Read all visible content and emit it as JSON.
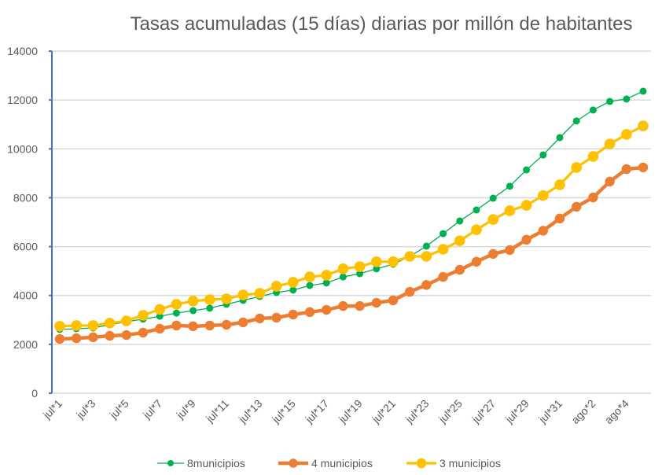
{
  "chart_data": {
    "type": "line",
    "title": "Tasas acumuladas (15 días) diarias por millón de habitantes",
    "xlabel": "",
    "ylabel": "",
    "ylim": [
      0,
      14000
    ],
    "yticks": [
      "0",
      "2000",
      "4000",
      "6000",
      "8000",
      "10000",
      "12000",
      "14000"
    ],
    "ytick_values": [
      0,
      2000,
      4000,
      6000,
      8000,
      10000,
      12000,
      14000
    ],
    "grid": true,
    "legend_position": "bottom",
    "x": [
      "jul*1",
      "jul*2",
      "jul*3",
      "jul*4",
      "jul*5",
      "jul*6",
      "jul*7",
      "jul*8",
      "jul*9",
      "jul*10",
      "jul*11",
      "jul*12",
      "jul*13",
      "jul*14",
      "jul*15",
      "jul*16",
      "jul*17",
      "jul*18",
      "jul*19",
      "jul*20",
      "jul*21",
      "jul*22",
      "jul*23",
      "jul*24",
      "jul*25",
      "jul*26",
      "jul*27",
      "jul*28",
      "jul*29",
      "jul*30",
      "jul*31",
      "ago*1",
      "ago*2",
      "ago*3",
      "ago*4",
      "ago*5"
    ],
    "xtick_labels": [
      "jul*1",
      "jul*3",
      "jul*5",
      "jul*7",
      "jul*9",
      "jul*11",
      "jul*13",
      "jul*15",
      "jul*17",
      "jul*19",
      "jul*21",
      "jul*23",
      "jul*25",
      "jul*27",
      "jul*29",
      "jul*31",
      "ago*2",
      "ago*4"
    ],
    "series": [
      {
        "name": "8municipios",
        "color": "#00b050",
        "values": [
          2610,
          2640,
          2670,
          2800,
          2930,
          3030,
          3150,
          3280,
          3380,
          3480,
          3640,
          3800,
          3960,
          4120,
          4220,
          4410,
          4510,
          4760,
          4890,
          5090,
          5280,
          5600,
          6020,
          6530,
          7050,
          7500,
          7980,
          8470,
          9140,
          9750,
          10460,
          11140,
          11590,
          11940,
          12040,
          12360
        ]
      },
      {
        "name": "4 municipios",
        "color": "#ed7d31",
        "values": [
          2220,
          2250,
          2290,
          2350,
          2380,
          2480,
          2640,
          2770,
          2740,
          2770,
          2800,
          2900,
          3060,
          3090,
          3220,
          3320,
          3410,
          3570,
          3570,
          3700,
          3800,
          4150,
          4430,
          4760,
          5050,
          5380,
          5700,
          5860,
          6280,
          6650,
          7150,
          7630,
          8010,
          8660,
          9170,
          9240
        ]
      },
      {
        "name": "3 municipios",
        "color": "#ffc000",
        "values": [
          2740,
          2770,
          2770,
          2870,
          2960,
          3190,
          3430,
          3640,
          3770,
          3830,
          3860,
          4020,
          4090,
          4380,
          4540,
          4760,
          4830,
          5090,
          5180,
          5380,
          5380,
          5600,
          5600,
          5890,
          6240,
          6690,
          7110,
          7470,
          7690,
          8090,
          8530,
          9240,
          9690,
          10200,
          10590,
          10940
        ]
      }
    ]
  },
  "colors": {
    "axis": "#4472c4",
    "grid": "#d9d9d9",
    "text": "#595959"
  }
}
